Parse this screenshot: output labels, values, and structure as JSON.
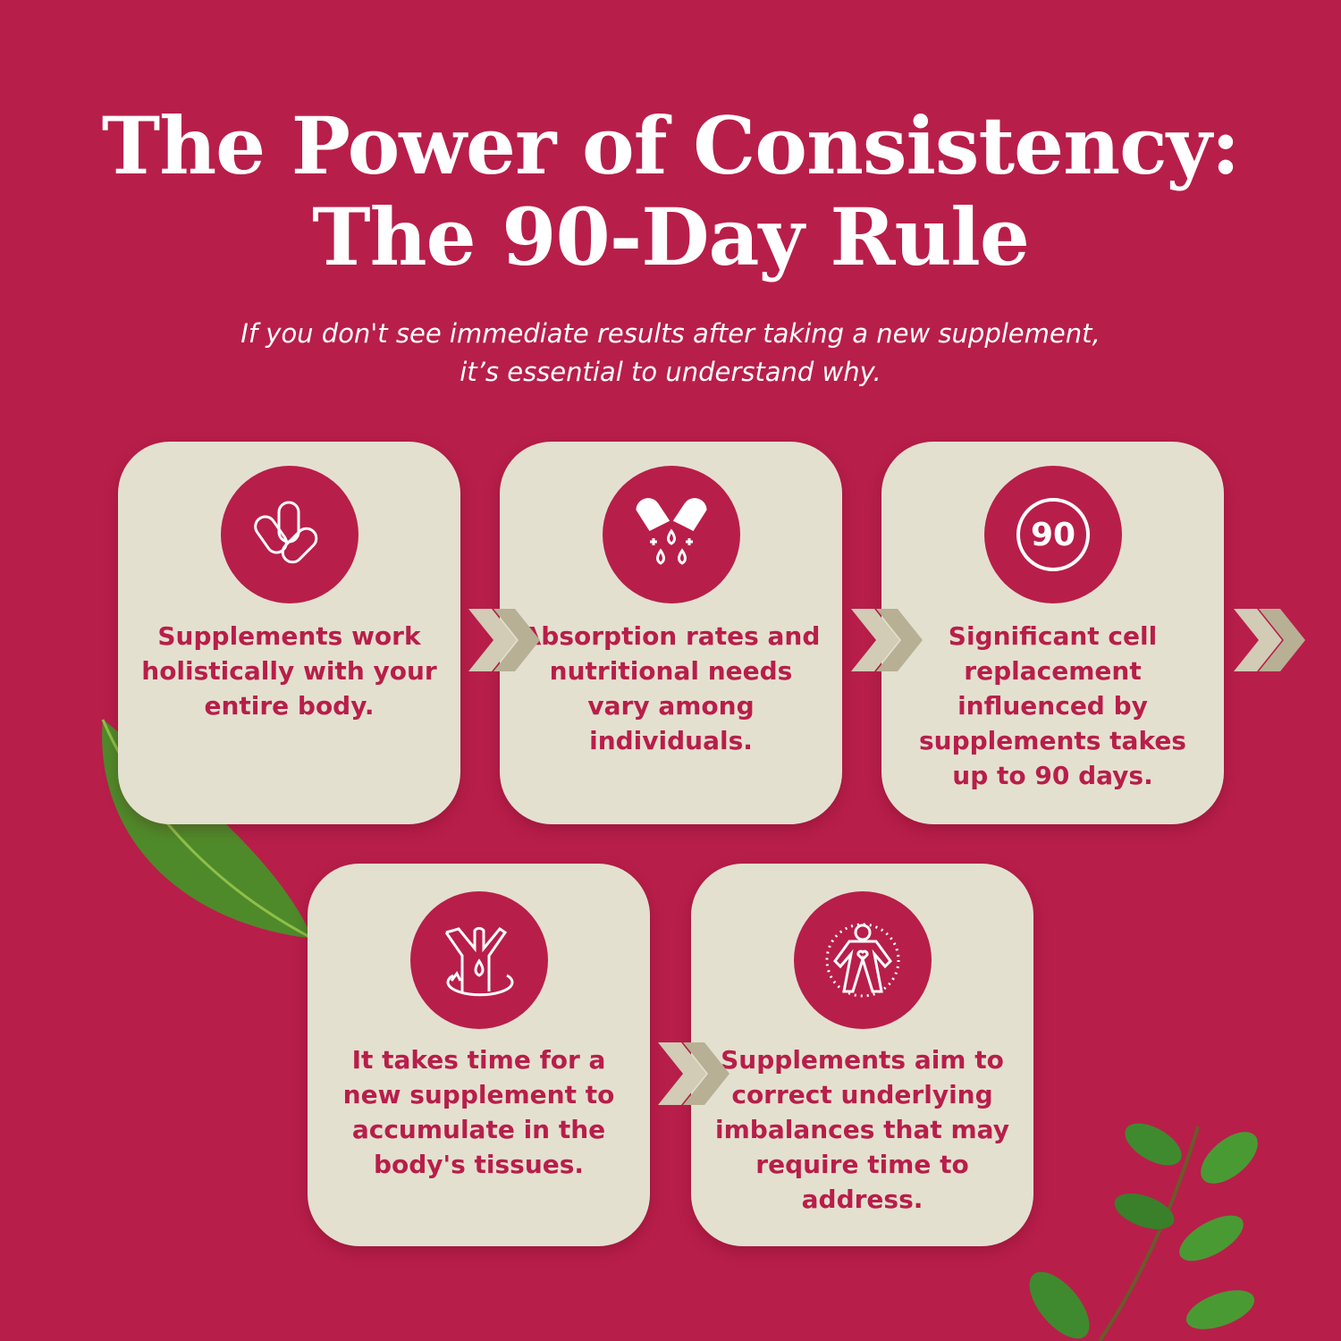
{
  "header": {
    "title_line1": "The Power of Consistency:",
    "title_line2": "The 90-Day Rule",
    "subtitle_line1": "If you don't see immediate results after taking a new supplement,",
    "subtitle_line2": "it’s essential to understand why."
  },
  "colors": {
    "background": "#b81e4a",
    "card": "#e4e0d0",
    "accent": "#b81e4a",
    "chevron_light": "#d2cbb5",
    "chevron_dark": "#b8b094"
  },
  "steps": [
    {
      "icon": "capsules-icon",
      "text": "Supplements work holistically with your entire body."
    },
    {
      "icon": "capsule-drops-icon",
      "text": "Absorption rates and nutritional needs vary among individuals."
    },
    {
      "icon": "ninety-days-icon",
      "icon_text": "90",
      "text": "Significant cell replacement influenced by supplements takes up to 90 days."
    },
    {
      "icon": "body-absorption-icon",
      "text": "It takes time for a new supplement to accumulate in the body's tissues."
    },
    {
      "icon": "body-heart-icon",
      "text": "Supplements aim to correct underlying imbalances that may require time to address."
    }
  ]
}
